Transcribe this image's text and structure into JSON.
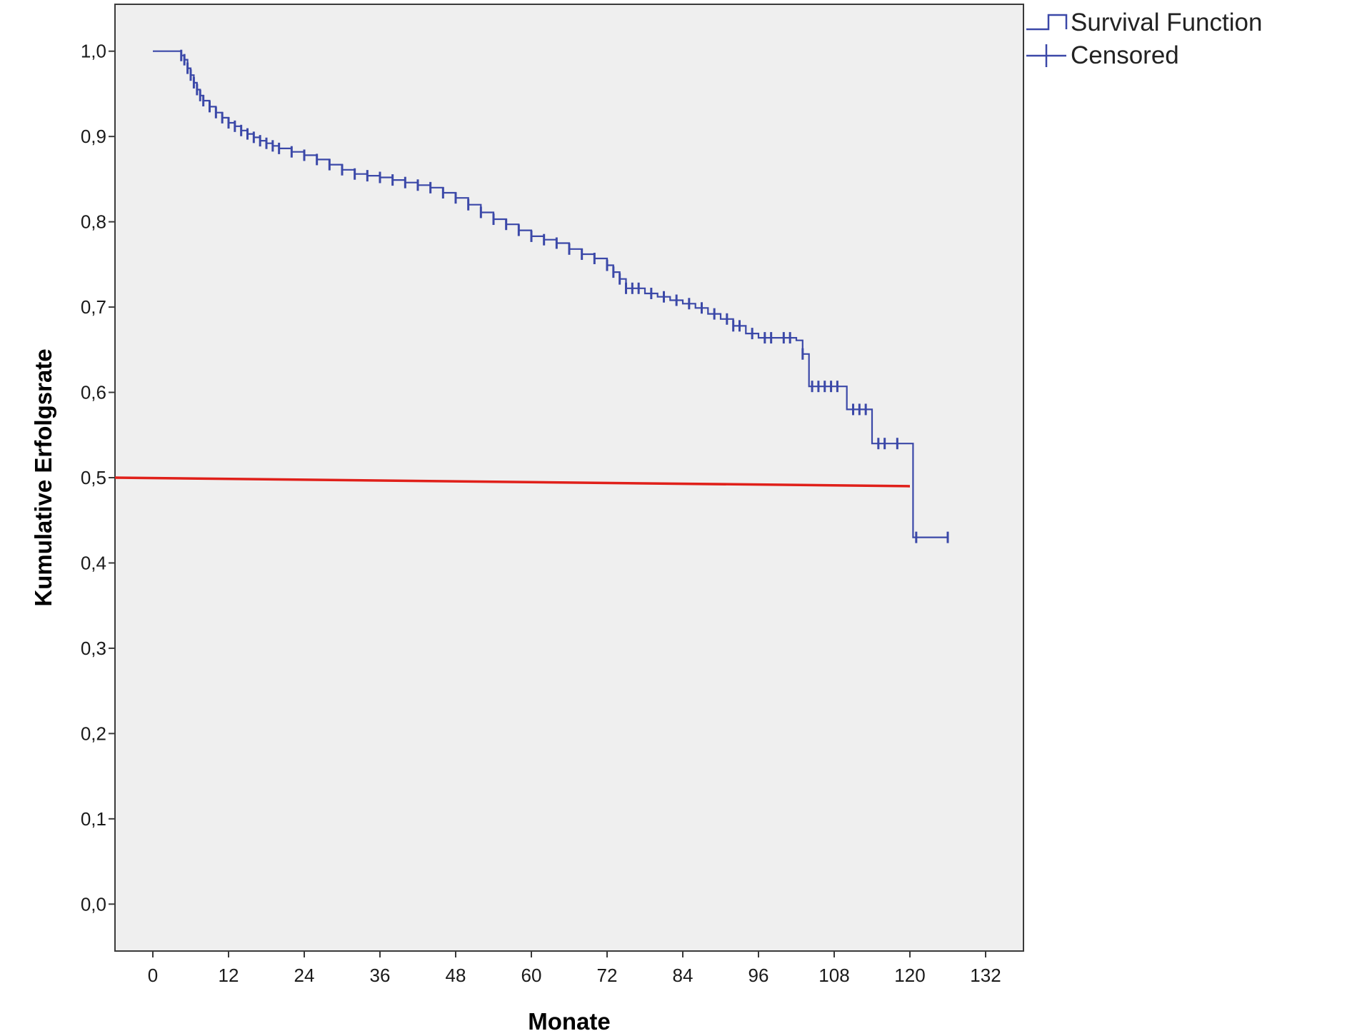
{
  "chart_data": {
    "type": "line",
    "title": "",
    "xlabel": "Monate",
    "ylabel": "Kumulative Erfolgsrate",
    "xlim": [
      -6,
      138
    ],
    "ylim": [
      -0.055,
      1.055
    ],
    "x_ticks": [
      0,
      12,
      24,
      36,
      48,
      60,
      72,
      84,
      96,
      108,
      120,
      132
    ],
    "x_tick_labels": [
      "0",
      "12",
      "24",
      "36",
      "48",
      "60",
      "72",
      "84",
      "96",
      "108",
      "120",
      "132"
    ],
    "y_ticks": [
      0,
      0.1,
      0.2,
      0.3,
      0.4,
      0.5,
      0.6,
      0.7,
      0.8,
      0.9,
      1.0
    ],
    "y_tick_labels": [
      "0,0",
      "0,1",
      "0,2",
      "0,3",
      "0,4",
      "0,5",
      "0,6",
      "0,7",
      "0,8",
      "0,9",
      "1,0"
    ],
    "grid": false,
    "legend_position": "top-right-outside",
    "plot_background": "#efefef",
    "series": [
      {
        "name": "Survival Function",
        "style": "step",
        "color": "#3b48a8",
        "points": [
          [
            0,
            1.0
          ],
          [
            4,
            1.0
          ],
          [
            4.5,
            0.995
          ],
          [
            5,
            0.99
          ],
          [
            5.5,
            0.98
          ],
          [
            6,
            0.972
          ],
          [
            6.5,
            0.963
          ],
          [
            7,
            0.955
          ],
          [
            7.5,
            0.948
          ],
          [
            8,
            0.942
          ],
          [
            9,
            0.935
          ],
          [
            10,
            0.928
          ],
          [
            11,
            0.922
          ],
          [
            12,
            0.916
          ],
          [
            13,
            0.912
          ],
          [
            14,
            0.907
          ],
          [
            15,
            0.903
          ],
          [
            16,
            0.899
          ],
          [
            17,
            0.895
          ],
          [
            18,
            0.892
          ],
          [
            19,
            0.889
          ],
          [
            20,
            0.886
          ],
          [
            22,
            0.882
          ],
          [
            24,
            0.878
          ],
          [
            26,
            0.873
          ],
          [
            28,
            0.867
          ],
          [
            30,
            0.861
          ],
          [
            32,
            0.856
          ],
          [
            34,
            0.854
          ],
          [
            36,
            0.852
          ],
          [
            38,
            0.849
          ],
          [
            40,
            0.846
          ],
          [
            42,
            0.843
          ],
          [
            44,
            0.84
          ],
          [
            46,
            0.834
          ],
          [
            48,
            0.828
          ],
          [
            50,
            0.82
          ],
          [
            52,
            0.811
          ],
          [
            54,
            0.803
          ],
          [
            56,
            0.797
          ],
          [
            58,
            0.79
          ],
          [
            60,
            0.783
          ],
          [
            62,
            0.779
          ],
          [
            64,
            0.775
          ],
          [
            66,
            0.768
          ],
          [
            68,
            0.762
          ],
          [
            70,
            0.757
          ],
          [
            72,
            0.749
          ],
          [
            73,
            0.741
          ],
          [
            74,
            0.733
          ],
          [
            75,
            0.722
          ],
          [
            78,
            0.716
          ],
          [
            80,
            0.712
          ],
          [
            82,
            0.708
          ],
          [
            84,
            0.704
          ],
          [
            86,
            0.699
          ],
          [
            88,
            0.692
          ],
          [
            90,
            0.686
          ],
          [
            92,
            0.678
          ],
          [
            94,
            0.669
          ],
          [
            96,
            0.664
          ],
          [
            102,
            0.661
          ],
          [
            103,
            0.645
          ],
          [
            104,
            0.607
          ],
          [
            109,
            0.607
          ],
          [
            110,
            0.58
          ],
          [
            113,
            0.58
          ],
          [
            114,
            0.54
          ],
          [
            120,
            0.54
          ],
          [
            120.5,
            0.43
          ],
          [
            126,
            0.43
          ]
        ],
        "censored": [
          4.5,
          5,
          5.5,
          6,
          6.5,
          7,
          7.5,
          8,
          9,
          10,
          11,
          12,
          13,
          14,
          15,
          16,
          17,
          18,
          19,
          20,
          22,
          24,
          26,
          28,
          30,
          32,
          34,
          36,
          38,
          40,
          42,
          44,
          46,
          48,
          50,
          52,
          54,
          56,
          58,
          60,
          62,
          64,
          66,
          68,
          70,
          72,
          73,
          74,
          75,
          76,
          77,
          79,
          81,
          83,
          85,
          87,
          89,
          91,
          92,
          93,
          95,
          97,
          98,
          100,
          101,
          103,
          104.5,
          105.5,
          106.5,
          107.5,
          108.5,
          111,
          112,
          113,
          115,
          116,
          118,
          121,
          126
        ]
      },
      {
        "name": "",
        "style": "reference-line",
        "color": "#e0201a",
        "points": [
          [
            -6,
            0.5
          ],
          [
            120,
            0.49
          ]
        ]
      }
    ],
    "legend": [
      {
        "label": "Survival Function",
        "icon": "step-line-icon"
      },
      {
        "label": "Censored",
        "icon": "censor-mark-icon"
      }
    ]
  }
}
